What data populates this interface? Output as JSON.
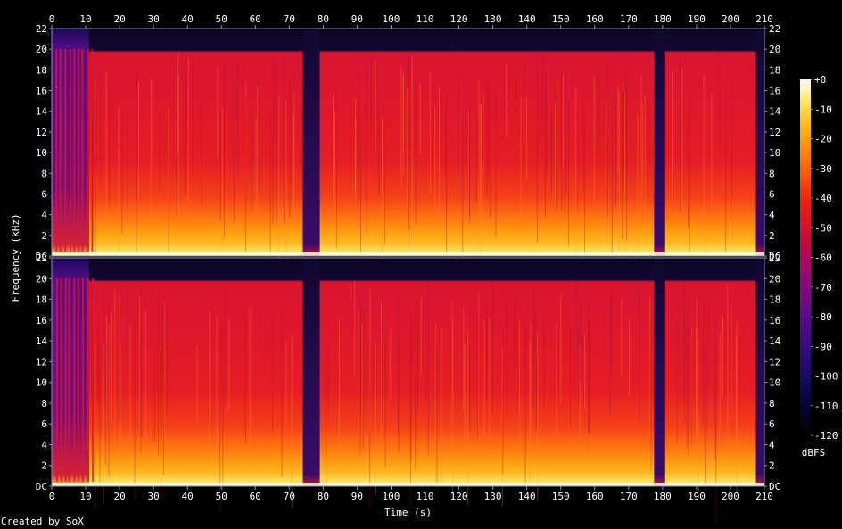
{
  "chart_data": {
    "type": "heatmap",
    "title": "",
    "xlabel": "Time (s)",
    "ylabel": "Frequency (kHz)",
    "x_ticks": [
      "0",
      "10",
      "20",
      "30",
      "40",
      "50",
      "60",
      "70",
      "80",
      "90",
      "100",
      "110",
      "120",
      "130",
      "140",
      "150",
      "160",
      "170",
      "180",
      "190",
      "200",
      "210"
    ],
    "y_ticks": [
      "DC",
      "2",
      "4",
      "6",
      "8",
      "10",
      "12",
      "14",
      "16",
      "18",
      "20",
      "22"
    ],
    "xlim": [
      0,
      210
    ],
    "ylim_khz": [
      0,
      22
    ],
    "channels": 2,
    "colorbar": {
      "label": "dBFS",
      "ticks": [
        "+0",
        "-10",
        "-20",
        "-30",
        "-40",
        "-50",
        "-60",
        "-70",
        "-80",
        "-90",
        "-100",
        "-110",
        "-120"
      ],
      "range": [
        -120,
        0
      ]
    },
    "lowpass_cutoff_khz": 20,
    "silent_gaps_s": [
      [
        74,
        79
      ],
      [
        177.5,
        180.5
      ]
    ],
    "intro_sparse_s": [
      0,
      11
    ],
    "end_s": 207.5
  },
  "footer": {
    "credit": "Created by SoX"
  },
  "colors": {
    "background": "#000000",
    "text": "#ffffff",
    "axis": "#8f8fc8"
  }
}
